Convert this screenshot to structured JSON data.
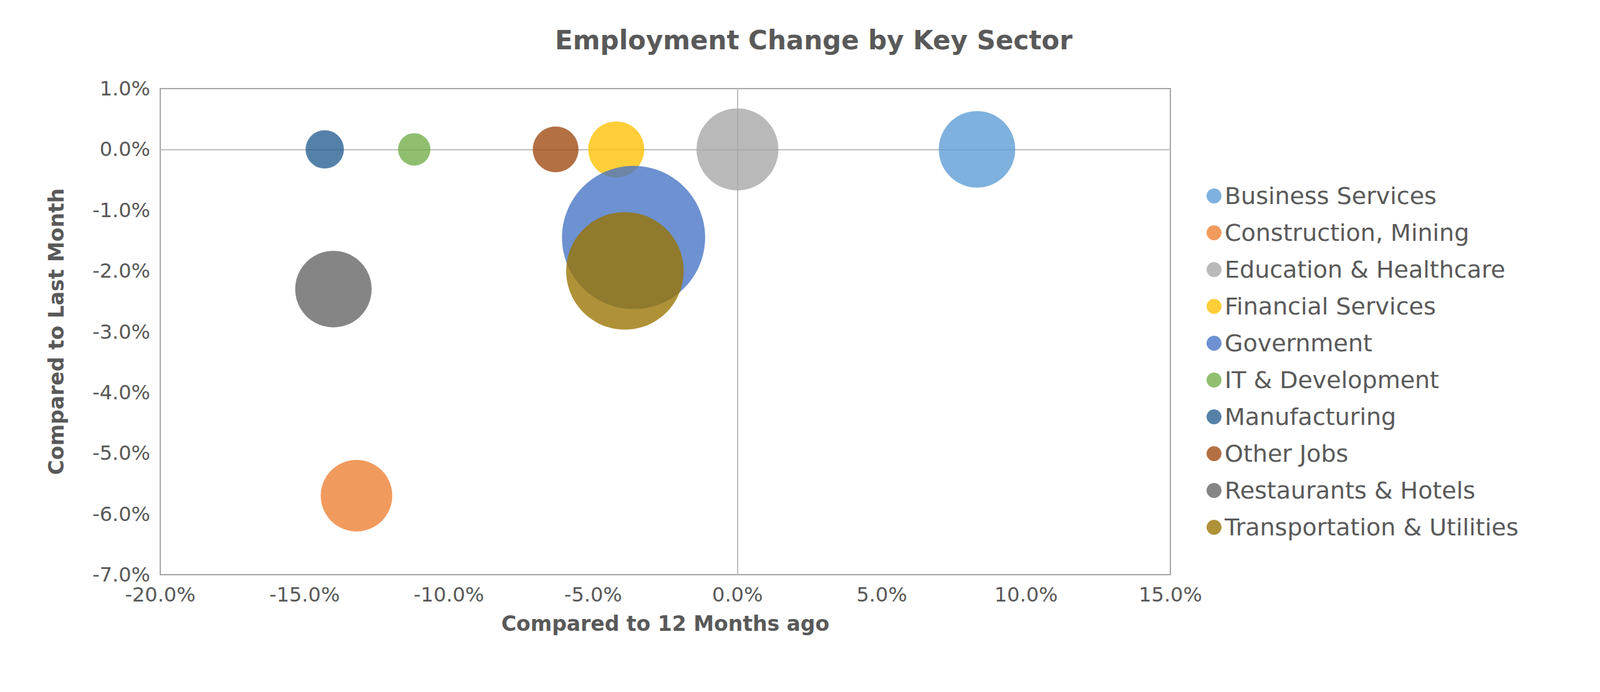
{
  "chart_data": {
    "type": "bubble",
    "title": "Employment Change by Key Sector",
    "x_label": "Compared to 12 Months ago",
    "y_label": "Compared to Last Month",
    "xlim": [
      -20,
      15
    ],
    "xticks": [
      {
        "value": -20,
        "label": "-20.0%"
      },
      {
        "value": -15,
        "label": "-15.0%"
      },
      {
        "value": -10,
        "label": "-10.0%"
      },
      {
        "value": -5,
        "label": "-5.0%"
      },
      {
        "value": 0,
        "label": "0.0%"
      },
      {
        "value": 5,
        "label": "5.0%"
      },
      {
        "value": 10,
        "label": "10.0%"
      },
      {
        "value": 15,
        "label": "15.0%"
      }
    ],
    "ylim": [
      -7,
      1
    ],
    "yticks": [
      {
        "value": -7,
        "label": "-7.0%"
      },
      {
        "value": -6,
        "label": "-6.0%"
      },
      {
        "value": -5,
        "label": "-5.0%"
      },
      {
        "value": -4,
        "label": "-4.0%"
      },
      {
        "value": -3,
        "label": "-3.0%"
      },
      {
        "value": -2,
        "label": "-2.0%"
      },
      {
        "value": -1,
        "label": "-1.0%"
      },
      {
        "value": 0,
        "label": "0.0%"
      },
      {
        "value": 1,
        "label": "1.0%"
      }
    ],
    "grid": false,
    "legend": "right",
    "series": [
      {
        "name": "Business Services",
        "color": "#5b9bd5",
        "x": [
          8.3
        ],
        "y": [
          0.0
        ],
        "sizes": [
          56
        ]
      },
      {
        "name": "Construction, Mining",
        "color": "#ed7d31",
        "x": [
          -13.2
        ],
        "y": [
          -5.7
        ],
        "sizes": [
          49
        ]
      },
      {
        "name": "Education & Healthcare",
        "color": "#a5a5a5",
        "x": [
          0.0
        ],
        "y": [
          0.0
        ],
        "sizes": [
          64
        ]
      },
      {
        "name": "Financial Services",
        "color": "#ffc000",
        "x": [
          -4.2
        ],
        "y": [
          0.0
        ],
        "sizes": [
          30
        ]
      },
      {
        "name": "Government",
        "color": "#4472c4",
        "x": [
          -3.6
        ],
        "y": [
          -1.45
        ],
        "sizes": [
          196
        ]
      },
      {
        "name": "IT & Development",
        "color": "#70ad47",
        "x": [
          -11.2
        ],
        "y": [
          0.0
        ],
        "sizes": [
          10
        ]
      },
      {
        "name": "Manufacturing",
        "color": "#255e91",
        "x": [
          -14.3
        ],
        "y": [
          0.0
        ],
        "sizes": [
          14
        ]
      },
      {
        "name": "Other Jobs",
        "color": "#9e480e",
        "x": [
          -6.3
        ],
        "y": [
          0.0
        ],
        "sizes": [
          20
        ]
      },
      {
        "name": "Restaurants & Hotels",
        "color": "#636363",
        "x": [
          -14.0
        ],
        "y": [
          -2.3
        ],
        "sizes": [
          56
        ]
      },
      {
        "name": "Transportation & Utilities",
        "color": "#997300",
        "x": [
          -3.9
        ],
        "y": [
          -2.0
        ],
        "sizes": [
          132
        ]
      }
    ]
  }
}
